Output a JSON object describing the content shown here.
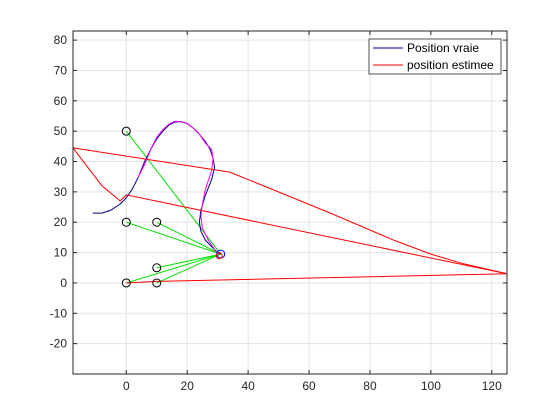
{
  "chart_data": {
    "type": "line",
    "title": "",
    "xlabel": "",
    "ylabel": "",
    "xlim": [
      -17.5,
      125
    ],
    "ylim": [
      -30,
      83
    ],
    "xticks": [
      0,
      20,
      40,
      60,
      80,
      100,
      120
    ],
    "yticks": [
      -20,
      -10,
      0,
      10,
      20,
      30,
      40,
      50,
      60,
      70,
      80
    ],
    "xtick_labels": [
      "0",
      "20",
      "40",
      "60",
      "80",
      "100",
      "120"
    ],
    "ytick_labels": [
      "-20",
      "-10",
      "0",
      "10",
      "20",
      "30",
      "40",
      "50",
      "60",
      "70",
      "80"
    ],
    "grid": true,
    "legend": "top-right",
    "series": [
      {
        "name": "Position vraie",
        "color": "#00007f",
        "x": [
          -11,
          -8,
          -5,
          -2,
          0,
          2,
          4,
          6,
          8,
          10,
          12,
          14,
          16,
          18,
          20,
          22,
          24,
          26,
          27.5,
          28.5,
          29,
          28,
          26,
          24.5,
          24,
          24.5,
          26,
          28,
          30,
          31
        ],
        "y": [
          23,
          23,
          24,
          26,
          28,
          31,
          35,
          40,
          44,
          47.5,
          50,
          52,
          53,
          53.2,
          52.5,
          51,
          49,
          46.5,
          44,
          41,
          38,
          34,
          29,
          24,
          20,
          17,
          14,
          12,
          10,
          9.5
        ]
      },
      {
        "name": "position estimee",
        "color": "#ff0000",
        "x": [
          -17.5,
          34,
          67,
          88,
          100,
          110,
          125
        ],
        "y": [
          44.5,
          36.5,
          23,
          14,
          9.5,
          6.5,
          3
        ]
      },
      {
        "name": "",
        "color": "#ff0000",
        "x": [
          -17.5,
          -8,
          -2,
          0,
          125
        ],
        "y": [
          44.5,
          32,
          27,
          29,
          3
        ]
      },
      {
        "name": "",
        "color": "#ff0000",
        "x": [
          0,
          10,
          125
        ],
        "y": [
          0,
          0.5,
          3
        ]
      },
      {
        "name": "",
        "color": "#ff00ff",
        "x": [
          4,
          6,
          8,
          10,
          12,
          14,
          16,
          18,
          20,
          22,
          24,
          26,
          28,
          28.5,
          28,
          26,
          25,
          24.5,
          25,
          27,
          29,
          30.5
        ],
        "y": [
          35,
          39,
          44,
          48,
          50.5,
          52.3,
          53.3,
          53.1,
          52.6,
          51,
          49,
          46,
          44,
          41,
          37,
          31,
          26,
          22,
          18,
          14,
          11,
          9.3
        ]
      }
    ],
    "beacons": [
      {
        "x": 0,
        "y": 50
      },
      {
        "x": 0,
        "y": 20
      },
      {
        "x": 10,
        "y": 20
      },
      {
        "x": 10,
        "y": 5
      },
      {
        "x": 0,
        "y": 0
      },
      {
        "x": 10,
        "y": 0
      }
    ],
    "current_position": {
      "x": 31,
      "y": 9.5
    },
    "estimate_marker": {
      "x": 30.5,
      "y": 9
    },
    "line_colors": {
      "beacon_links": "#00e000",
      "beacons": "#000000",
      "current": "#0000ff"
    }
  },
  "legend": {
    "items": [
      {
        "label": "Position vraie",
        "color": "#00007f"
      },
      {
        "label": "position estimee",
        "color": "#ff0000"
      }
    ]
  }
}
